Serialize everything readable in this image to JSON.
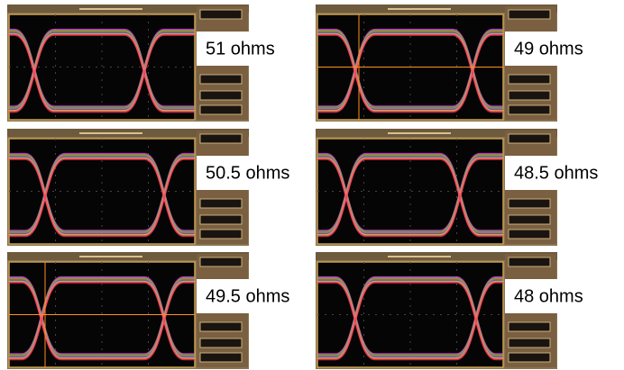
{
  "panels": [
    {
      "label": "51 ohms"
    },
    {
      "label": "49 ohms"
    },
    {
      "label": "50.5 ohms"
    },
    {
      "label": "48.5 ohms"
    },
    {
      "label": "49.5 ohms"
    },
    {
      "label": "48 ohms"
    }
  ]
}
